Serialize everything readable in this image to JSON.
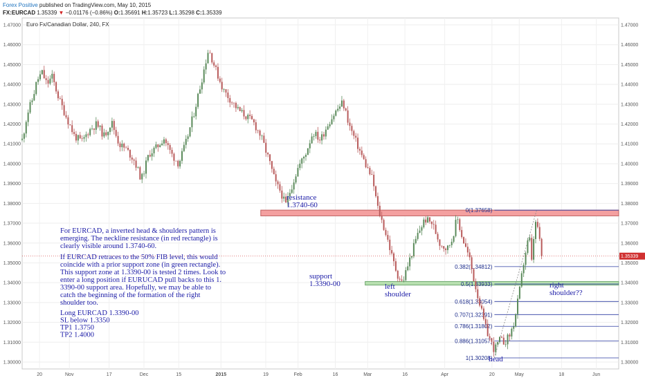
{
  "header": {
    "author": "Forex Positive",
    "published": "published on TradingView.com, May 10, 2015",
    "symbol": "FX:EURCAD",
    "last": "1.35339",
    "change": "−0.01176 (−0.86%)",
    "ohlc": {
      "o_label": "O:",
      "o": "1.35691",
      "h_label": "H:",
      "h": "1.35723",
      "l_label": "L:",
      "l": "1.35298",
      "c_label": "C:",
      "c": "1.35339"
    }
  },
  "colors": {
    "up": "#5a8a5a",
    "down": "#b85a5a",
    "resistance_fill": "#f4a0a0",
    "support_fill": "#b8e0b0",
    "fib_line": "#2a3aa0",
    "annotation": "#1a1aa6",
    "last_price_tag": "#d03030"
  },
  "chart_data": {
    "type": "candlestick",
    "title": "Euro Fx/Canadian Dollar, 240, FX",
    "y_axis": {
      "ticks": [
        "1.47000",
        "1.46000",
        "1.45000",
        "1.44000",
        "1.43000",
        "1.42000",
        "1.41000",
        "1.40000",
        "1.39000",
        "1.38000",
        "1.37000",
        "1.36000",
        "1.35000",
        "1.34000",
        "1.33000",
        "1.32000",
        "1.31000",
        "1.30000"
      ],
      "range": [
        1.2965,
        1.4735
      ],
      "last_price_label": "1.35339"
    },
    "x_axis": {
      "ticks": [
        "20",
        "Nov",
        "17",
        "Dec",
        "15",
        "2015",
        "19",
        "Feb",
        "16",
        "Mar",
        "16",
        "Apr",
        "20",
        "May",
        "18",
        "Jun"
      ],
      "range": [
        "2014-10-13",
        "2015-06-10"
      ]
    },
    "price_path": [
      [
        "2014-10-13",
        1.412
      ],
      [
        "2014-10-14",
        1.418
      ],
      [
        "2014-10-15",
        1.425
      ],
      [
        "2014-10-17",
        1.432
      ],
      [
        "2014-10-19",
        1.442
      ],
      [
        "2014-10-21",
        1.446
      ],
      [
        "2014-10-23",
        1.44
      ],
      [
        "2014-10-25",
        1.444
      ],
      [
        "2014-10-28",
        1.432
      ],
      [
        "2014-10-31",
        1.423
      ],
      [
        "2014-11-03",
        1.414
      ],
      [
        "2014-11-06",
        1.411
      ],
      [
        "2014-11-09",
        1.417
      ],
      [
        "2014-11-12",
        1.42
      ],
      [
        "2014-11-15",
        1.414
      ],
      [
        "2014-11-18",
        1.421
      ],
      [
        "2014-11-21",
        1.41
      ],
      [
        "2014-11-24",
        1.407
      ],
      [
        "2014-11-27",
        1.402
      ],
      [
        "2014-11-30",
        1.392
      ],
      [
        "2014-12-03",
        1.405
      ],
      [
        "2014-12-06",
        1.408
      ],
      [
        "2014-12-09",
        1.413
      ],
      [
        "2014-12-12",
        1.405
      ],
      [
        "2014-12-15",
        1.4
      ],
      [
        "2014-12-18",
        1.411
      ],
      [
        "2014-12-21",
        1.425
      ],
      [
        "2014-12-24",
        1.441
      ],
      [
        "2014-12-27",
        1.458
      ],
      [
        "2014-12-30",
        1.447
      ],
      [
        "2015-01-02",
        1.437
      ],
      [
        "2015-01-05",
        1.432
      ],
      [
        "2015-01-08",
        1.427
      ],
      [
        "2015-01-11",
        1.424
      ],
      [
        "2015-01-14",
        1.421
      ],
      [
        "2015-01-17",
        1.414
      ],
      [
        "2015-01-20",
        1.403
      ],
      [
        "2015-01-23",
        1.39
      ],
      [
        "2015-01-25",
        1.386
      ],
      [
        "2015-01-27",
        1.379
      ],
      [
        "2015-01-29",
        1.387
      ],
      [
        "2015-02-01",
        1.398
      ],
      [
        "2015-02-04",
        1.405
      ],
      [
        "2015-02-07",
        1.416
      ],
      [
        "2015-02-10",
        1.412
      ],
      [
        "2015-02-13",
        1.42
      ],
      [
        "2015-02-16",
        1.426
      ],
      [
        "2015-02-19",
        1.431
      ],
      [
        "2015-02-22",
        1.418
      ],
      [
        "2015-02-25",
        1.409
      ],
      [
        "2015-02-28",
        1.4
      ],
      [
        "2015-03-03",
        1.392
      ],
      [
        "2015-03-05",
        1.378
      ],
      [
        "2015-03-07",
        1.37
      ],
      [
        "2015-03-09",
        1.362
      ],
      [
        "2015-03-11",
        1.352
      ],
      [
        "2015-03-13",
        1.344
      ],
      [
        "2015-03-15",
        1.34
      ],
      [
        "2015-03-17",
        1.348
      ],
      [
        "2015-03-19",
        1.356
      ],
      [
        "2015-03-21",
        1.364
      ],
      [
        "2015-03-24",
        1.372
      ],
      [
        "2015-03-27",
        1.37
      ],
      [
        "2015-03-30",
        1.36
      ],
      [
        "2015-04-02",
        1.357
      ],
      [
        "2015-04-04",
        1.362
      ],
      [
        "2015-04-06",
        1.373
      ],
      [
        "2015-04-08",
        1.363
      ],
      [
        "2015-04-11",
        1.352
      ],
      [
        "2015-04-13",
        1.34
      ],
      [
        "2015-04-15",
        1.33
      ],
      [
        "2015-04-17",
        1.319
      ],
      [
        "2015-04-19",
        1.312
      ],
      [
        "2015-04-21",
        1.306
      ],
      [
        "2015-04-23",
        1.311
      ],
      [
        "2015-04-25",
        1.31
      ],
      [
        "2015-04-27",
        1.313
      ],
      [
        "2015-04-29",
        1.32
      ],
      [
        "2015-05-01",
        1.335
      ],
      [
        "2015-05-03",
        1.352
      ],
      [
        "2015-05-05",
        1.364
      ],
      [
        "2015-05-06",
        1.35
      ],
      [
        "2015-05-07",
        1.366
      ],
      [
        "2015-05-08",
        1.372
      ],
      [
        "2015-05-09",
        1.362
      ],
      [
        "2015-05-10",
        1.3534
      ]
    ],
    "zones": [
      {
        "name": "resistance",
        "y_high": 1.3766,
        "y_low": 1.3737,
        "x_start": "2015-01-17",
        "x_end": "2015-06-10"
      },
      {
        "name": "support",
        "y_high": 1.3406,
        "y_low": 1.3388,
        "x_start": "2015-02-28",
        "x_end": "2015-06-10"
      }
    ],
    "fibonacci": {
      "x_start": "2015-04-21",
      "x_end": "2015-06-10",
      "levels": [
        {
          "ratio": "0",
          "price": "1.37658",
          "label": "0(1.37658)"
        },
        {
          "ratio": "0.382",
          "price": "1.34812",
          "label": "0.382(1.34812)"
        },
        {
          "ratio": "0.5",
          "price": "1.33933",
          "label": "0.5(1.33933)"
        },
        {
          "ratio": "0.618",
          "price": "1.33054",
          "label": "0.618(1.33054)"
        },
        {
          "ratio": "0.707",
          "price": "1.32391",
          "label": "0.707(1.32391)"
        },
        {
          "ratio": "0.786",
          "price": "1.31802",
          "label": "0.786(1.31802)"
        },
        {
          "ratio": "0.886",
          "price": "1.31057",
          "label": "0.886(1.31057)"
        },
        {
          "ratio": "1",
          "price": "1.30208",
          "label": "1(1.30208)"
        }
      ],
      "trend": [
        [
          "2015-04-21",
          1.30208
        ],
        [
          "2015-05-08",
          1.37658
        ]
      ]
    }
  },
  "annotations": {
    "resistance": [
      "resistance",
      "1.3740-60"
    ],
    "support": [
      "support",
      "1.3390-00"
    ],
    "left_shoulder": [
      "left",
      "shoulder"
    ],
    "head": [
      "head"
    ],
    "right_shoulder": [
      "right",
      "shoulder??"
    ],
    "note1": [
      "For EURCAD, a inverted head & shoulders pattern is",
      "emerging. The neckline resistance (in red rectangle) is",
      "clearly visible around 1.3740-60."
    ],
    "note2": [
      "If EURCAD retraces to the 50% FIB level, this would",
      "coincide with a prior support zone (in green rectangle).",
      "This support zone at 1.3390-00 is tested 2 times. Look to",
      "enter a long position if EURUCAD pull backs to this 1.",
      "3390-00 support area. Hopefully, we may be able to",
      "catch the beginning of the formation of the right",
      "shoulder too."
    ],
    "trade": [
      "Long EURCAD 1.3390-00",
      "SL below 1.3350",
      "TP1 1.3750",
      "TP2 1.4000"
    ]
  }
}
